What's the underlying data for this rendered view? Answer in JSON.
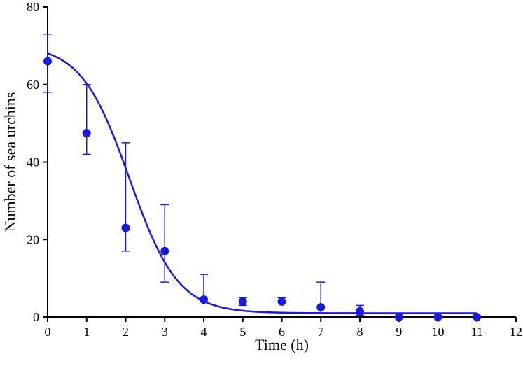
{
  "chart_data": {
    "type": "scatter",
    "title": "",
    "xlabel": "Time (h)",
    "ylabel": "Number of sea urchins",
    "xlim": [
      0,
      12
    ],
    "ylim": [
      0,
      80
    ],
    "x_ticks": [
      0,
      1,
      2,
      3,
      4,
      5,
      6,
      7,
      8,
      9,
      10,
      11,
      12
    ],
    "y_ticks": [
      0,
      20,
      40,
      60,
      80
    ],
    "grid": false,
    "legend": "none",
    "colors": {
      "series": "#1a1adc",
      "axis": "#000000"
    },
    "series": [
      {
        "x": [
          0,
          1,
          2,
          3,
          4,
          5,
          6,
          7,
          8,
          9,
          10,
          11
        ],
        "y": [
          66,
          47.5,
          23,
          17,
          4.5,
          4,
          4,
          2.5,
          1.5,
          0,
          0,
          0
        ],
        "err_upper": [
          73,
          60,
          45,
          29,
          11,
          5,
          5,
          9,
          3,
          0,
          0,
          0
        ],
        "err_lower": [
          58,
          42,
          17,
          9,
          4.5,
          3,
          4,
          1,
          0.5,
          0,
          0,
          0
        ]
      }
    ],
    "fit_curve": {
      "type": "sigmoidal-decay",
      "x_range": [
        0,
        11
      ],
      "top": 70.3,
      "bottom": 1.0,
      "x50": 2.1,
      "slope": 0.62
    }
  }
}
